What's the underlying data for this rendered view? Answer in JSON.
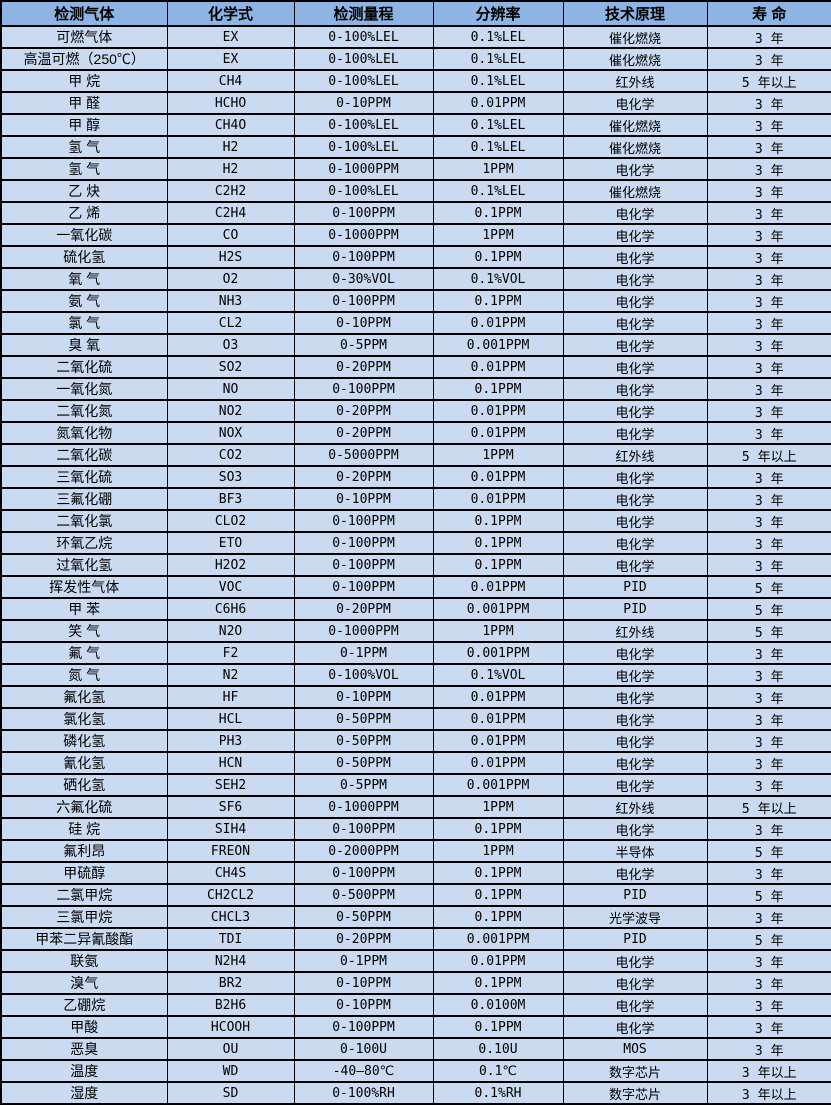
{
  "colors": {
    "header_bg": "#8db4e2",
    "row_bg": "#c9daf1",
    "border": "#000000",
    "text": "#000000"
  },
  "table": {
    "columns": [
      {
        "key": "gas",
        "label": "检测气体"
      },
      {
        "key": "formula",
        "label": "化学式"
      },
      {
        "key": "range",
        "label": "检测量程"
      },
      {
        "key": "resolution",
        "label": "分辨率"
      },
      {
        "key": "principle",
        "label": "技术原理"
      },
      {
        "key": "lifespan",
        "label": "寿 命"
      }
    ],
    "rows": [
      [
        "可燃气体",
        "EX",
        "0-100%LEL",
        "0.1%LEL",
        "催化燃烧",
        "3 年"
      ],
      [
        "高温可燃（250℃）",
        "EX",
        "0-100%LEL",
        "0.1%LEL",
        "催化燃烧",
        "3 年"
      ],
      [
        "甲 烷",
        "CH4",
        "0-100%LEL",
        "0.1%LEL",
        "红外线",
        "5 年以上"
      ],
      [
        "甲 醛",
        "HCHO",
        "0-10PPM",
        "0.01PPM",
        "电化学",
        "3 年"
      ],
      [
        "甲 醇",
        "CH4O",
        "0-100%LEL",
        "0.1%LEL",
        "催化燃烧",
        "3 年"
      ],
      [
        "氢 气",
        "H2",
        "0-100%LEL",
        "0.1%LEL",
        "催化燃烧",
        "3 年"
      ],
      [
        "氢 气",
        "H2",
        "0-1000PPM",
        "1PPM",
        "电化学",
        "3 年"
      ],
      [
        "乙 炔",
        "C2H2",
        "0-100%LEL",
        "0.1%LEL",
        "催化燃烧",
        "3 年"
      ],
      [
        "乙 烯",
        "C2H4",
        "0-100PPM",
        "0.1PPM",
        "电化学",
        "3 年"
      ],
      [
        "一氧化碳",
        "CO",
        "0-1000PPM",
        "1PPM",
        "电化学",
        "3 年"
      ],
      [
        "硫化氢",
        "H2S",
        "0-100PPM",
        "0.1PPM",
        "电化学",
        "3 年"
      ],
      [
        "氧 气",
        "O2",
        "0-30%VOL",
        "0.1%VOL",
        "电化学",
        "3 年"
      ],
      [
        "氨 气",
        "NH3",
        "0-100PPM",
        "0.1PPM",
        "电化学",
        "3 年"
      ],
      [
        "氯 气",
        "CL2",
        "0-10PPM",
        "0.01PPM",
        "电化学",
        "3 年"
      ],
      [
        "臭 氧",
        "O3",
        "0-5PPM",
        "0.001PPM",
        "电化学",
        "3 年"
      ],
      [
        "二氧化硫",
        "SO2",
        "0-20PPM",
        "0.01PPM",
        "电化学",
        "3 年"
      ],
      [
        "一氧化氮",
        "NO",
        "0-100PPM",
        "0.1PPM",
        "电化学",
        "3 年"
      ],
      [
        "二氧化氮",
        "NO2",
        "0-20PPM",
        "0.01PPM",
        "电化学",
        "3 年"
      ],
      [
        "氮氧化物",
        "NOX",
        "0-20PPM",
        "0.01PPM",
        "电化学",
        "3 年"
      ],
      [
        "二氧化碳",
        "CO2",
        "0-5000PPM",
        "1PPM",
        "红外线",
        "5 年以上"
      ],
      [
        "三氧化硫",
        "SO3",
        "0-20PPM",
        "0.01PPM",
        "电化学",
        "3 年"
      ],
      [
        "三氟化硼",
        "BF3",
        "0-10PPM",
        "0.01PPM",
        "电化学",
        "3 年"
      ],
      [
        "二氧化氯",
        "CLO2",
        "0-100PPM",
        "0.1PPM",
        "电化学",
        "3 年"
      ],
      [
        "环氧乙烷",
        "ETO",
        "0-100PPM",
        "0.1PPM",
        "电化学",
        "3 年"
      ],
      [
        "过氧化氢",
        "H2O2",
        "0-100PPM",
        "0.1PPM",
        "电化学",
        "3 年"
      ],
      [
        "挥发性气体",
        "VOC",
        "0-100PPM",
        "0.01PPM",
        "PID",
        "5 年"
      ],
      [
        "甲 苯",
        "C6H6",
        "0-20PPM",
        "0.001PPM",
        "PID",
        "5 年"
      ],
      [
        "笑 气",
        "N2O",
        "0-1000PPM",
        "1PPM",
        "红外线",
        "5 年"
      ],
      [
        "氟 气",
        "F2",
        "0-1PPM",
        "0.001PPM",
        "电化学",
        "3 年"
      ],
      [
        "氮 气",
        "N2",
        "0-100%VOL",
        "0.1%VOL",
        "电化学",
        "3 年"
      ],
      [
        "氟化氢",
        "HF",
        "0-10PPM",
        "0.01PPM",
        "电化学",
        "3 年"
      ],
      [
        "氯化氢",
        "HCL",
        "0-50PPM",
        "0.01PPM",
        "电化学",
        "3 年"
      ],
      [
        "磷化氢",
        "PH3",
        "0-50PPM",
        "0.01PPM",
        "电化学",
        "3 年"
      ],
      [
        "氰化氢",
        "HCN",
        "0-50PPM",
        "0.01PPM",
        "电化学",
        "3 年"
      ],
      [
        "硒化氢",
        "SEH2",
        "0-5PPM",
        "0.001PPM",
        "电化学",
        "3 年"
      ],
      [
        "六氟化硫",
        "SF6",
        "0-1000PPM",
        "1PPM",
        "红外线",
        "5 年以上"
      ],
      [
        "硅 烷",
        "SIH4",
        "0-100PPM",
        "0.1PPM",
        "电化学",
        "3 年"
      ],
      [
        "氟利昂",
        "FREON",
        "0-2000PPM",
        "1PPM",
        "半导体",
        "5 年"
      ],
      [
        "甲硫醇",
        "CH4S",
        "0-100PPM",
        "0.1PPM",
        "电化学",
        "3 年"
      ],
      [
        "二氯甲烷",
        "CH2CL2",
        "0-500PPM",
        "0.1PPM",
        "PID",
        "5 年"
      ],
      [
        "三氯甲烷",
        "CHCL3",
        "0-50PPM",
        "0.1PPM",
        "光学波导",
        "3 年"
      ],
      [
        "甲苯二异氰酸酯",
        "TDI",
        "0-20PPM",
        "0.001PPM",
        "PID",
        "5 年"
      ],
      [
        "联氨",
        "N2H4",
        "0-1PPM",
        "0.01PPM",
        "电化学",
        "3 年"
      ],
      [
        "溴气",
        "BR2",
        "0-10PPM",
        "0.1PPM",
        "电化学",
        "3 年"
      ],
      [
        "乙硼烷",
        "B2H6",
        "0-10PPM",
        "0.0100M",
        "电化学",
        "3 年"
      ],
      [
        "甲酸",
        "HCOOH",
        "0-100PPM",
        "0.1PPM",
        "电化学",
        "3 年"
      ],
      [
        "恶臭",
        "OU",
        "0-100U",
        "0.10U",
        "MOS",
        "3 年"
      ],
      [
        "温度",
        "WD",
        "-40—80℃",
        "0.1℃",
        "数字芯片",
        "3 年以上"
      ],
      [
        "湿度",
        "SD",
        "0-100%RH",
        "0.1%RH",
        "数字芯片",
        "3 年以上"
      ]
    ]
  }
}
